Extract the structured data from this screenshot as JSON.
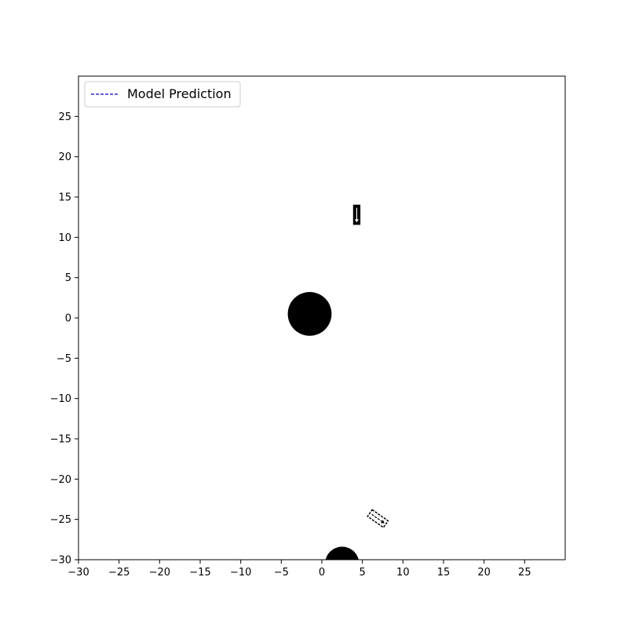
{
  "chart_data": {
    "type": "scatter",
    "title": "",
    "xlabel": "",
    "ylabel": "",
    "xlim": [
      -30,
      30
    ],
    "ylim": [
      -30,
      30
    ],
    "x_ticks": [
      -30,
      -25,
      -20,
      -15,
      -10,
      -5,
      0,
      5,
      10,
      15,
      20,
      25
    ],
    "y_ticks": [
      -30,
      -25,
      -20,
      -15,
      -10,
      -5,
      0,
      5,
      10,
      15,
      20,
      25
    ],
    "x_tick_labels": [
      "−30",
      "−25",
      "−20",
      "−15",
      "−10",
      "−5",
      "0",
      "5",
      "10",
      "15",
      "20",
      "25"
    ],
    "y_tick_labels": [
      "−30",
      "−25",
      "−20",
      "−15",
      "−10",
      "−5",
      "0",
      "5",
      "10",
      "15",
      "20",
      "25"
    ],
    "grid": false,
    "legend": {
      "position": "top-left",
      "entries": [
        {
          "label": "Model Prediction",
          "color": "#0000cc",
          "style": "dashed"
        }
      ]
    },
    "obstacles": [
      {
        "x": -1.5,
        "y": 0.5,
        "radius": 2.7,
        "color": "#000000"
      },
      {
        "x": 2.5,
        "y": -30.5,
        "radius": 2.1,
        "color": "#000000"
      }
    ],
    "vehicles": [
      {
        "x": 4.3,
        "y": 12.8,
        "length": 2.5,
        "width": 0.9,
        "heading_deg": -90,
        "style": "solid"
      },
      {
        "x": 6.9,
        "y": -24.9,
        "length": 2.4,
        "width": 1.0,
        "heading_deg": -35,
        "style": "dashed"
      }
    ]
  }
}
